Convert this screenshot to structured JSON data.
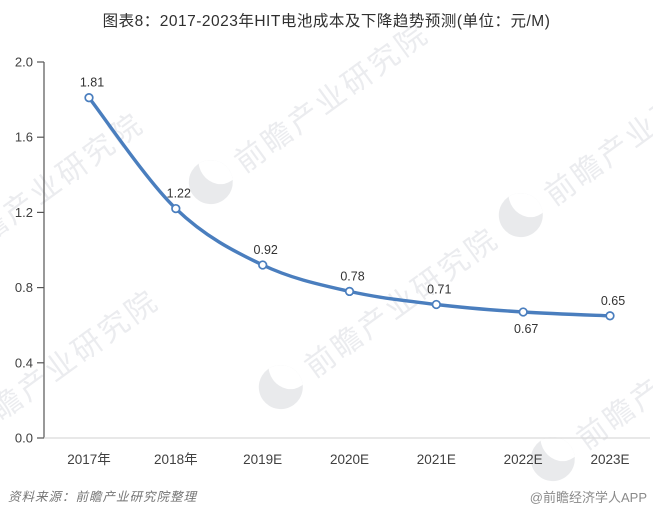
{
  "title": "图表8：2017-2023年HIT电池成本及下降趋势预测(单位：元/M)",
  "chart_data": {
    "type": "line",
    "categories": [
      "2017年",
      "2018年",
      "2019E",
      "2020E",
      "2021E",
      "2022E",
      "2023E"
    ],
    "values": [
      1.81,
      1.22,
      0.92,
      0.78,
      0.71,
      0.67,
      0.65
    ],
    "labels": [
      "1.81",
      "1.22",
      "0.92",
      "0.78",
      "0.71",
      "0.67",
      "0.65"
    ],
    "label_positions": [
      "above",
      "above",
      "above",
      "above",
      "above",
      "below",
      "above"
    ],
    "title": "图表8：2017-2023年HIT电池成本及下降趋势预测(单位：元/M)",
    "xlabel": "",
    "ylabel": "",
    "ylim": [
      0.0,
      2.0
    ],
    "yticks": [
      "0.0",
      "0.4",
      "0.8",
      "1.2",
      "1.6",
      "2.0"
    ],
    "grid": false,
    "legend": "none",
    "marker": "open-circle",
    "line_color": "#4a7ebe",
    "axis_color": "#555555",
    "baseline_color": "#d9d9d9",
    "tick_label_color": "#404040",
    "data_label_color": "#333333"
  },
  "watermark": {
    "text": "前瞻产业研究院"
  },
  "footer": {
    "source": "资料来源：前瞻产业研究院整理",
    "credit": "@前瞻经济学人APP"
  }
}
